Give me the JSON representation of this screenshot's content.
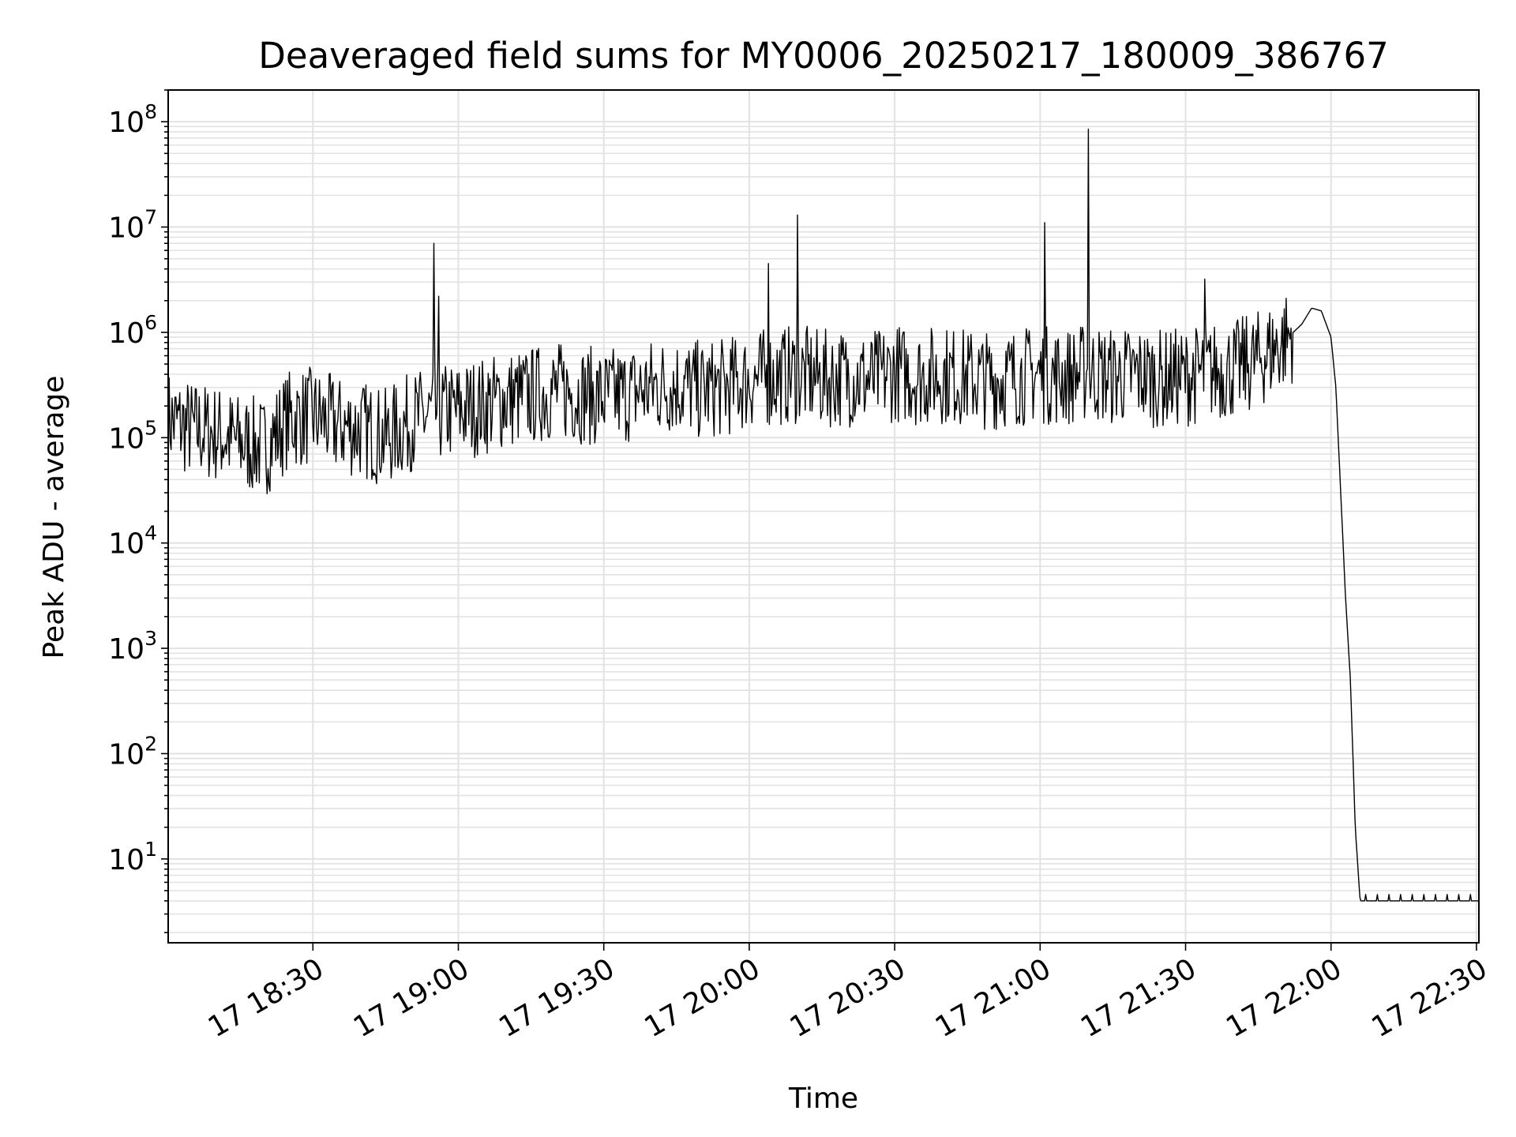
{
  "chart_data": {
    "type": "line",
    "title": "Deaveraged field sums for MY0006_20250217_180009_386767",
    "xlabel": "Time",
    "ylabel": "Peak ADU - average",
    "yscale": "log",
    "ylim": [
      1.6,
      200000000
    ],
    "xlim": [
      "2025-02-17 18:00:09",
      "2025-02-17 22:30:30"
    ],
    "grid": "on",
    "legend": "none",
    "x_ticks": [
      {
        "value": "2025-02-17 18:30",
        "label": "17 18:30"
      },
      {
        "value": "2025-02-17 19:00",
        "label": "17 19:00"
      },
      {
        "value": "2025-02-17 19:30",
        "label": "17 19:30"
      },
      {
        "value": "2025-02-17 20:00",
        "label": "17 20:00"
      },
      {
        "value": "2025-02-17 20:30",
        "label": "17 20:30"
      },
      {
        "value": "2025-02-17 21:00",
        "label": "17 21:00"
      },
      {
        "value": "2025-02-17 21:30",
        "label": "17 21:30"
      },
      {
        "value": "2025-02-17 22:00",
        "label": "17 22:00"
      },
      {
        "value": "2025-02-17 22:30",
        "label": "17 22:30"
      }
    ],
    "y_ticks": [
      {
        "value": 10,
        "base": "10",
        "exp": "1"
      },
      {
        "value": 100,
        "base": "10",
        "exp": "2"
      },
      {
        "value": 1000,
        "base": "10",
        "exp": "3"
      },
      {
        "value": 10000,
        "base": "10",
        "exp": "4"
      },
      {
        "value": 100000,
        "base": "10",
        "exp": "5"
      },
      {
        "value": 1000000,
        "base": "10",
        "exp": "6"
      },
      {
        "value": 10000000,
        "base": "10",
        "exp": "7"
      },
      {
        "value": 100000000,
        "base": "10",
        "exp": "8"
      }
    ],
    "series": [
      {
        "color": "#000000",
        "x": [
          "2025-02-17 18:00",
          "2025-02-17 18:05",
          "2025-02-17 18:10",
          "2025-02-17 18:15",
          "2025-02-17 18:20",
          "2025-02-17 18:25",
          "2025-02-17 18:30",
          "2025-02-17 18:35",
          "2025-02-17 18:40",
          "2025-02-17 18:45",
          "2025-02-17 18:50",
          "2025-02-17 18:55",
          "2025-02-17 19:00",
          "2025-02-17 19:05",
          "2025-02-17 19:10",
          "2025-02-17 19:15",
          "2025-02-17 19:20",
          "2025-02-17 19:25",
          "2025-02-17 19:30",
          "2025-02-17 19:35",
          "2025-02-17 19:40",
          "2025-02-17 19:45",
          "2025-02-17 19:50",
          "2025-02-17 19:55",
          "2025-02-17 20:00",
          "2025-02-17 20:05",
          "2025-02-17 20:10",
          "2025-02-17 20:15",
          "2025-02-17 20:20",
          "2025-02-17 20:25",
          "2025-02-17 20:30",
          "2025-02-17 20:35",
          "2025-02-17 20:40",
          "2025-02-17 20:45",
          "2025-02-17 20:50",
          "2025-02-17 20:55",
          "2025-02-17 21:00",
          "2025-02-17 21:05",
          "2025-02-17 21:10",
          "2025-02-17 21:15",
          "2025-02-17 21:20",
          "2025-02-17 21:25",
          "2025-02-17 21:30",
          "2025-02-17 21:35",
          "2025-02-17 21:40",
          "2025-02-17 21:45",
          "2025-02-17 21:50",
          "2025-02-17 21:54",
          "2025-02-17 21:56",
          "2025-02-17 21:58",
          "2025-02-17 22:00",
          "2025-02-17 22:01",
          "2025-02-17 22:02",
          "2025-02-17 22:03",
          "2025-02-17 22:04",
          "2025-02-17 22:05",
          "2025-02-17 22:06",
          "2025-02-17 22:10",
          "2025-02-17 22:15",
          "2025-02-17 22:20",
          "2025-02-17 22:25",
          "2025-02-17 22:30"
        ],
        "y": [
          150000,
          120000,
          110000,
          90000,
          80000,
          150000,
          160000,
          130000,
          120000,
          100000,
          140000,
          170000,
          180000,
          200000,
          230000,
          250000,
          280000,
          260000,
          240000,
          260000,
          300000,
          320000,
          280000,
          300000,
          350000,
          380000,
          400000,
          360000,
          380000,
          350000,
          420000,
          380000,
          400000,
          370000,
          350000,
          380000,
          400000,
          380000,
          420000,
          380000,
          400000,
          360000,
          380000,
          420000,
          450000,
          550000,
          800000,
          1200000,
          1700000,
          1600000,
          900000,
          300000,
          30000,
          3000,
          500,
          20,
          4,
          4,
          4,
          4,
          4,
          4
        ],
        "spikes": [
          {
            "x": "2025-02-17 18:55",
            "y": 7000000
          },
          {
            "x": "2025-02-17 18:56",
            "y": 2200000
          },
          {
            "x": "2025-02-17 20:04",
            "y": 4500000
          },
          {
            "x": "2025-02-17 20:10",
            "y": 13000000
          },
          {
            "x": "2025-02-17 21:01",
            "y": 11000000
          },
          {
            "x": "2025-02-17 21:10",
            "y": 85000000
          },
          {
            "x": "2025-02-17 21:34",
            "y": 3200000
          }
        ]
      }
    ]
  }
}
